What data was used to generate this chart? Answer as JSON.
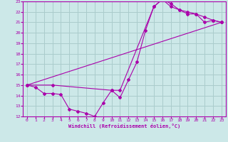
{
  "xlabel": "Windchill (Refroidissement éolien,°C)",
  "xlim": [
    -0.5,
    23.5
  ],
  "ylim": [
    12,
    23
  ],
  "yticks": [
    12,
    13,
    14,
    15,
    16,
    17,
    18,
    19,
    20,
    21,
    22,
    23
  ],
  "xticks": [
    0,
    1,
    2,
    3,
    4,
    5,
    6,
    7,
    8,
    9,
    10,
    11,
    12,
    13,
    14,
    15,
    16,
    17,
    18,
    19,
    20,
    21,
    22,
    23
  ],
  "bg_color": "#cce8e8",
  "grid_color": "#aacccc",
  "line_color": "#aa00aa",
  "line1_x": [
    0,
    1,
    2,
    3,
    4,
    5,
    6,
    7,
    8,
    9,
    10,
    11,
    12,
    13,
    14,
    15,
    16,
    17,
    18,
    19,
    20,
    21,
    22,
    23
  ],
  "line1_y": [
    15.0,
    14.8,
    14.2,
    14.2,
    14.1,
    12.7,
    12.5,
    12.3,
    12.0,
    13.3,
    14.5,
    13.8,
    15.5,
    17.2,
    20.2,
    22.5,
    23.2,
    22.8,
    22.2,
    22.0,
    21.8,
    21.0,
    21.2,
    21.0
  ],
  "line2_x": [
    0,
    3,
    10,
    11,
    15,
    16,
    17,
    18,
    19,
    20,
    21,
    22,
    23
  ],
  "line2_y": [
    15.0,
    15.0,
    14.5,
    14.5,
    22.5,
    23.2,
    22.5,
    22.2,
    21.8,
    21.8,
    21.5,
    21.2,
    21.0
  ],
  "line3_x": [
    0,
    23
  ],
  "line3_y": [
    15.0,
    21.0
  ]
}
